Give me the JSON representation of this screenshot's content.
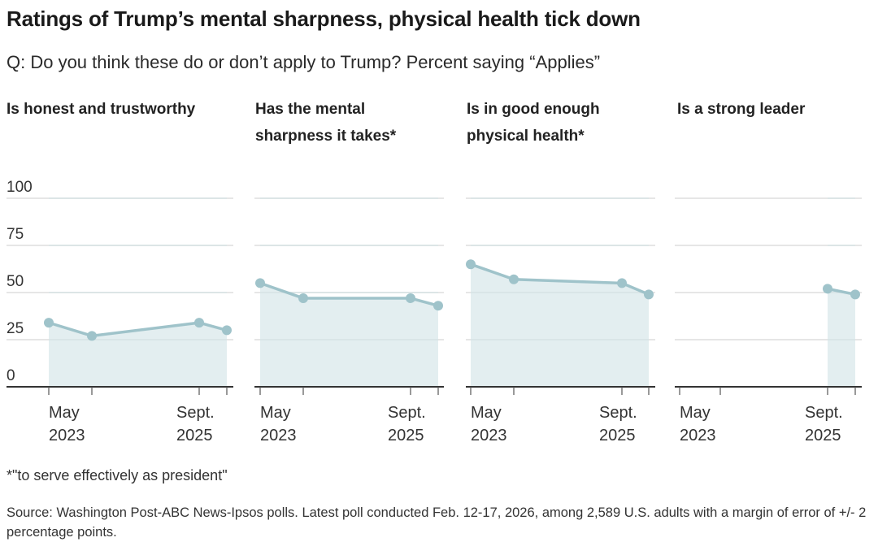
{
  "chart_data": {
    "type": "area",
    "title": "Ratings of Trump’s mental sharpness, physical health tick down",
    "subtitle": "Q: Do you think these do or don’t apply to Trump? Percent saying “Applies”",
    "ylim": [
      0,
      100
    ],
    "yticks": [
      0,
      25,
      50,
      75,
      100
    ],
    "xtick_labels": [
      {
        "line1": "May",
        "line2": "2023"
      },
      {
        "line1": "Sept.",
        "line2": "2025"
      }
    ],
    "x_positions": [
      "May 2023",
      "mid 2023",
      "Sept. 2025",
      "Feb. 2026"
    ],
    "colors": {
      "line": "#9fc3ca",
      "fill": "#e3eef0",
      "grid": "#dddddd",
      "axis": "#333333"
    },
    "panels": [
      {
        "title": "Is honest and trustworthy",
        "values": [
          34,
          27,
          34,
          30
        ]
      },
      {
        "title": "Has the mental sharpness it takes*",
        "values": [
          55,
          47,
          47,
          43
        ]
      },
      {
        "title": "Is in good enough physical health*",
        "values": [
          65,
          57,
          55,
          49
        ]
      },
      {
        "title": "Is a strong leader",
        "values": [
          null,
          null,
          52,
          49
        ]
      }
    ],
    "footnote": "*\"to serve effectively as president\"",
    "source": "Source: Washington Post-ABC News-Ipsos polls. Latest poll conducted Feb. 12-17, 2026, among 2,589 U.S. adults with a margin of error of +/- 2 percentage points."
  },
  "panel_titles_display": [
    [
      "Is honest and trustworthy"
    ],
    [
      "Has the mental",
      "sharpness it takes*"
    ],
    [
      "Is in good enough",
      "physical health*"
    ],
    [
      "Is a strong leader"
    ]
  ]
}
